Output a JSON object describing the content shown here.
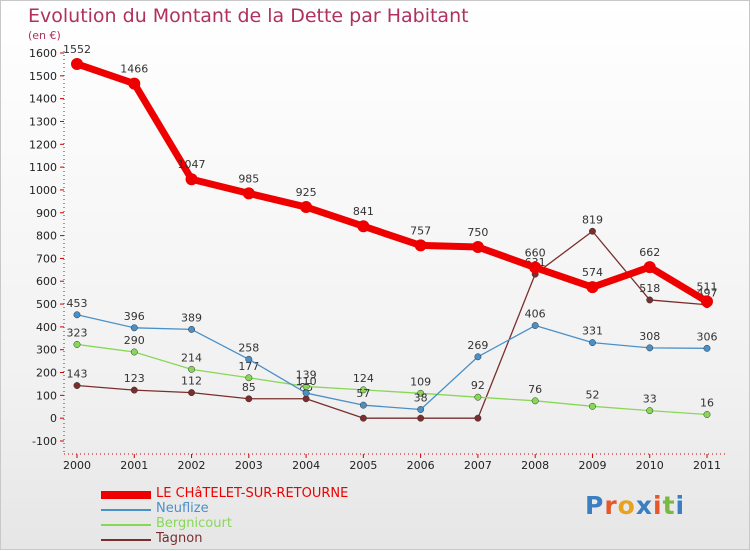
{
  "title": "Evolution du Montant de la Dette par Habitant",
  "subtitle": "(en €)",
  "logo": {
    "text": "Proxiti",
    "colors": [
      "#3a7fc1",
      "#e8562a",
      "#e8a21d",
      "#3a7fc1",
      "#e8562a",
      "#78b843",
      "#3a7fc1"
    ]
  },
  "chart_data": {
    "type": "line",
    "x": [
      "2000",
      "2001",
      "2002",
      "2003",
      "2004",
      "2005",
      "2006",
      "2007",
      "2008",
      "2009",
      "2010",
      "2011"
    ],
    "ylim": [
      -100,
      1600
    ],
    "yticks": [
      -100,
      0,
      100,
      200,
      300,
      400,
      500,
      600,
      700,
      800,
      900,
      1000,
      1100,
      1200,
      1300,
      1400,
      1500,
      1600
    ],
    "grid": false,
    "legend_position": "bottom-left",
    "series": [
      {
        "name": "LE CHâTELET-SUR-RETOURNE",
        "color": "#ee0000",
        "values": [
          1552,
          1466,
          1047,
          985,
          925,
          841,
          757,
          750,
          660,
          574,
          662,
          511
        ],
        "labels": [
          "1552",
          "1466",
          "1047",
          "985",
          "925",
          "841",
          "757",
          "750",
          "660",
          "574",
          "662",
          "511"
        ]
      },
      {
        "name": "Neuflize",
        "color": "#4a90c8",
        "values": [
          453,
          396,
          389,
          258,
          110,
          57,
          38,
          269,
          406,
          331,
          308,
          306
        ],
        "labels": [
          "453",
          "396",
          "389",
          "258",
          "110",
          "57",
          "38",
          "269",
          "406",
          "331",
          "308",
          "306"
        ]
      },
      {
        "name": "Bergnicourt",
        "color": "#88d858",
        "values": [
          323,
          290,
          214,
          177,
          139,
          124,
          109,
          92,
          76,
          52,
          33,
          16
        ],
        "labels": [
          "323",
          "290",
          "214",
          "177",
          "139",
          "124",
          "109",
          "92",
          "76",
          "52",
          "33",
          "16"
        ]
      },
      {
        "name": "Tagnon",
        "color": "#7a2e2e",
        "values": [
          143,
          123,
          112,
          85,
          85,
          0,
          0,
          0,
          631,
          819,
          518,
          497
        ],
        "labels": [
          "143",
          "123",
          "112",
          "85",
          "85",
          "",
          "",
          "",
          "631",
          "819",
          "518",
          "497"
        ]
      }
    ]
  }
}
